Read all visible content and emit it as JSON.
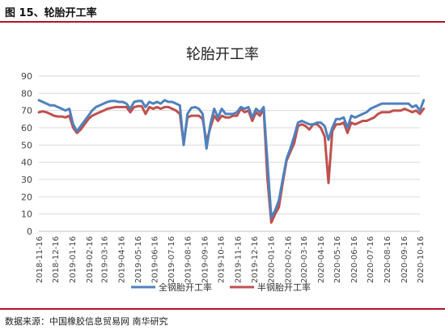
{
  "header": {
    "figure_title": "图 15、轮胎开工率"
  },
  "footer": {
    "source": "数据来源：中国橡胶信息贸易网  南华研究"
  },
  "chart_data": {
    "type": "line",
    "title": "轮胎开工率",
    "xlabel": "",
    "ylabel": "",
    "ylim": [
      0,
      90
    ],
    "yticks": [
      0,
      10,
      20,
      30,
      40,
      50,
      60,
      70,
      80,
      90
    ],
    "grid": true,
    "legend_position": "bottom",
    "colors": {
      "full_steel": "#4f81bd",
      "semi_steel": "#c0504d"
    },
    "x_tick_labels": [
      "2018-11-16",
      "2018-12-16",
      "2019-01-16",
      "2019-02-16",
      "2019-03-16",
      "2019-04-16",
      "2019-05-16",
      "2019-06-16",
      "2019-07-16",
      "2019-08-16",
      "2019-09-16",
      "2019-10-16",
      "2019-11-16",
      "2019-12-16",
      "2020-01-16",
      "2020-02-16",
      "2020-03-16",
      "2020-04-16",
      "2020-05-16",
      "2020-06-16",
      "2020-07-16",
      "2020-08-16",
      "2020-09-16",
      "2020-10-16"
    ],
    "x": [
      "2018-11-16",
      "2018-11-23",
      "2018-11-30",
      "2018-12-07",
      "2018-12-14",
      "2018-12-21",
      "2018-12-28",
      "2019-01-04",
      "2019-01-11",
      "2019-01-18",
      "2019-01-25",
      "2019-02-01",
      "2019-02-08",
      "2019-02-15",
      "2019-02-22",
      "2019-03-01",
      "2019-03-08",
      "2019-03-15",
      "2019-03-22",
      "2019-03-29",
      "2019-04-05",
      "2019-04-12",
      "2019-04-19",
      "2019-04-26",
      "2019-05-03",
      "2019-05-10",
      "2019-05-17",
      "2019-05-24",
      "2019-05-31",
      "2019-06-07",
      "2019-06-14",
      "2019-06-21",
      "2019-06-28",
      "2019-07-05",
      "2019-07-12",
      "2019-07-19",
      "2019-07-26",
      "2019-08-02",
      "2019-08-09",
      "2019-08-16",
      "2019-08-23",
      "2019-08-30",
      "2019-09-06",
      "2019-09-13",
      "2019-09-20",
      "2019-09-27",
      "2019-10-04",
      "2019-10-11",
      "2019-10-18",
      "2019-10-25",
      "2019-11-01",
      "2019-11-08",
      "2019-11-15",
      "2019-11-22",
      "2019-11-29",
      "2019-12-06",
      "2019-12-13",
      "2019-12-20",
      "2019-12-27",
      "2020-01-03",
      "2020-01-10",
      "2020-01-17",
      "2020-01-24",
      "2020-01-31",
      "2020-02-07",
      "2020-02-14",
      "2020-02-21",
      "2020-02-28",
      "2020-03-06",
      "2020-03-13",
      "2020-03-20",
      "2020-03-27",
      "2020-04-03",
      "2020-04-10",
      "2020-04-17",
      "2020-04-24",
      "2020-05-01",
      "2020-05-08",
      "2020-05-15",
      "2020-05-22",
      "2020-05-29",
      "2020-06-05",
      "2020-06-12",
      "2020-06-19",
      "2020-06-26",
      "2020-07-03",
      "2020-07-10",
      "2020-07-17",
      "2020-07-24",
      "2020-07-31",
      "2020-08-07",
      "2020-08-14",
      "2020-08-21",
      "2020-08-28",
      "2020-09-04",
      "2020-09-11",
      "2020-09-18",
      "2020-09-25",
      "2020-10-02",
      "2020-10-09",
      "2020-10-16",
      "2020-10-23"
    ],
    "series": [
      {
        "name": "全钢胎开工率",
        "color_key": "full_steel",
        "values": [
          76,
          75,
          74,
          73,
          73,
          72,
          71,
          70,
          71,
          62,
          58,
          61,
          64,
          67,
          70,
          72,
          73,
          74,
          75,
          75.5,
          75.5,
          75,
          75,
          74,
          71,
          75,
          75.5,
          75.5,
          72,
          75,
          74,
          75,
          74,
          76,
          75,
          75,
          74,
          73,
          50,
          68,
          71.5,
          72,
          71,
          68,
          48,
          62,
          71,
          66,
          71,
          68,
          68,
          68,
          69,
          72,
          71,
          72,
          66,
          71,
          69,
          72,
          40,
          8,
          12,
          18,
          30,
          42,
          48,
          55,
          63,
          64,
          63,
          62,
          62,
          63,
          63,
          61,
          53,
          60,
          65,
          65,
          66,
          60,
          67,
          66,
          67,
          68,
          69,
          71,
          72,
          73,
          74,
          74,
          74,
          74,
          74,
          74,
          74,
          74,
          72,
          73,
          70,
          76
        ]
      },
      {
        "name": "半钢胎开工率",
        "color_key": "semi_steel",
        "values": [
          69,
          69.5,
          69,
          68,
          67,
          66.5,
          66.5,
          66,
          67,
          60,
          57,
          59,
          62,
          65,
          67,
          68,
          69,
          70,
          71,
          71.5,
          72,
          72,
          72,
          72,
          69,
          72,
          72.5,
          72.5,
          68,
          72,
          71,
          72,
          71,
          72,
          72,
          71,
          70,
          68,
          51,
          66,
          67,
          67,
          67,
          65,
          52,
          60,
          67,
          64,
          67,
          66,
          66,
          67,
          67,
          71,
          69,
          70,
          64,
          69,
          67,
          71,
          30,
          5,
          10,
          14,
          28,
          41,
          46,
          51,
          61,
          62,
          61,
          59,
          62,
          62,
          60,
          55,
          28,
          58,
          62,
          62,
          63,
          57,
          63,
          62,
          63,
          64,
          64,
          65,
          66,
          68,
          69,
          69,
          69,
          70,
          70,
          70,
          71,
          70,
          69,
          70,
          68,
          71
        ]
      }
    ]
  }
}
